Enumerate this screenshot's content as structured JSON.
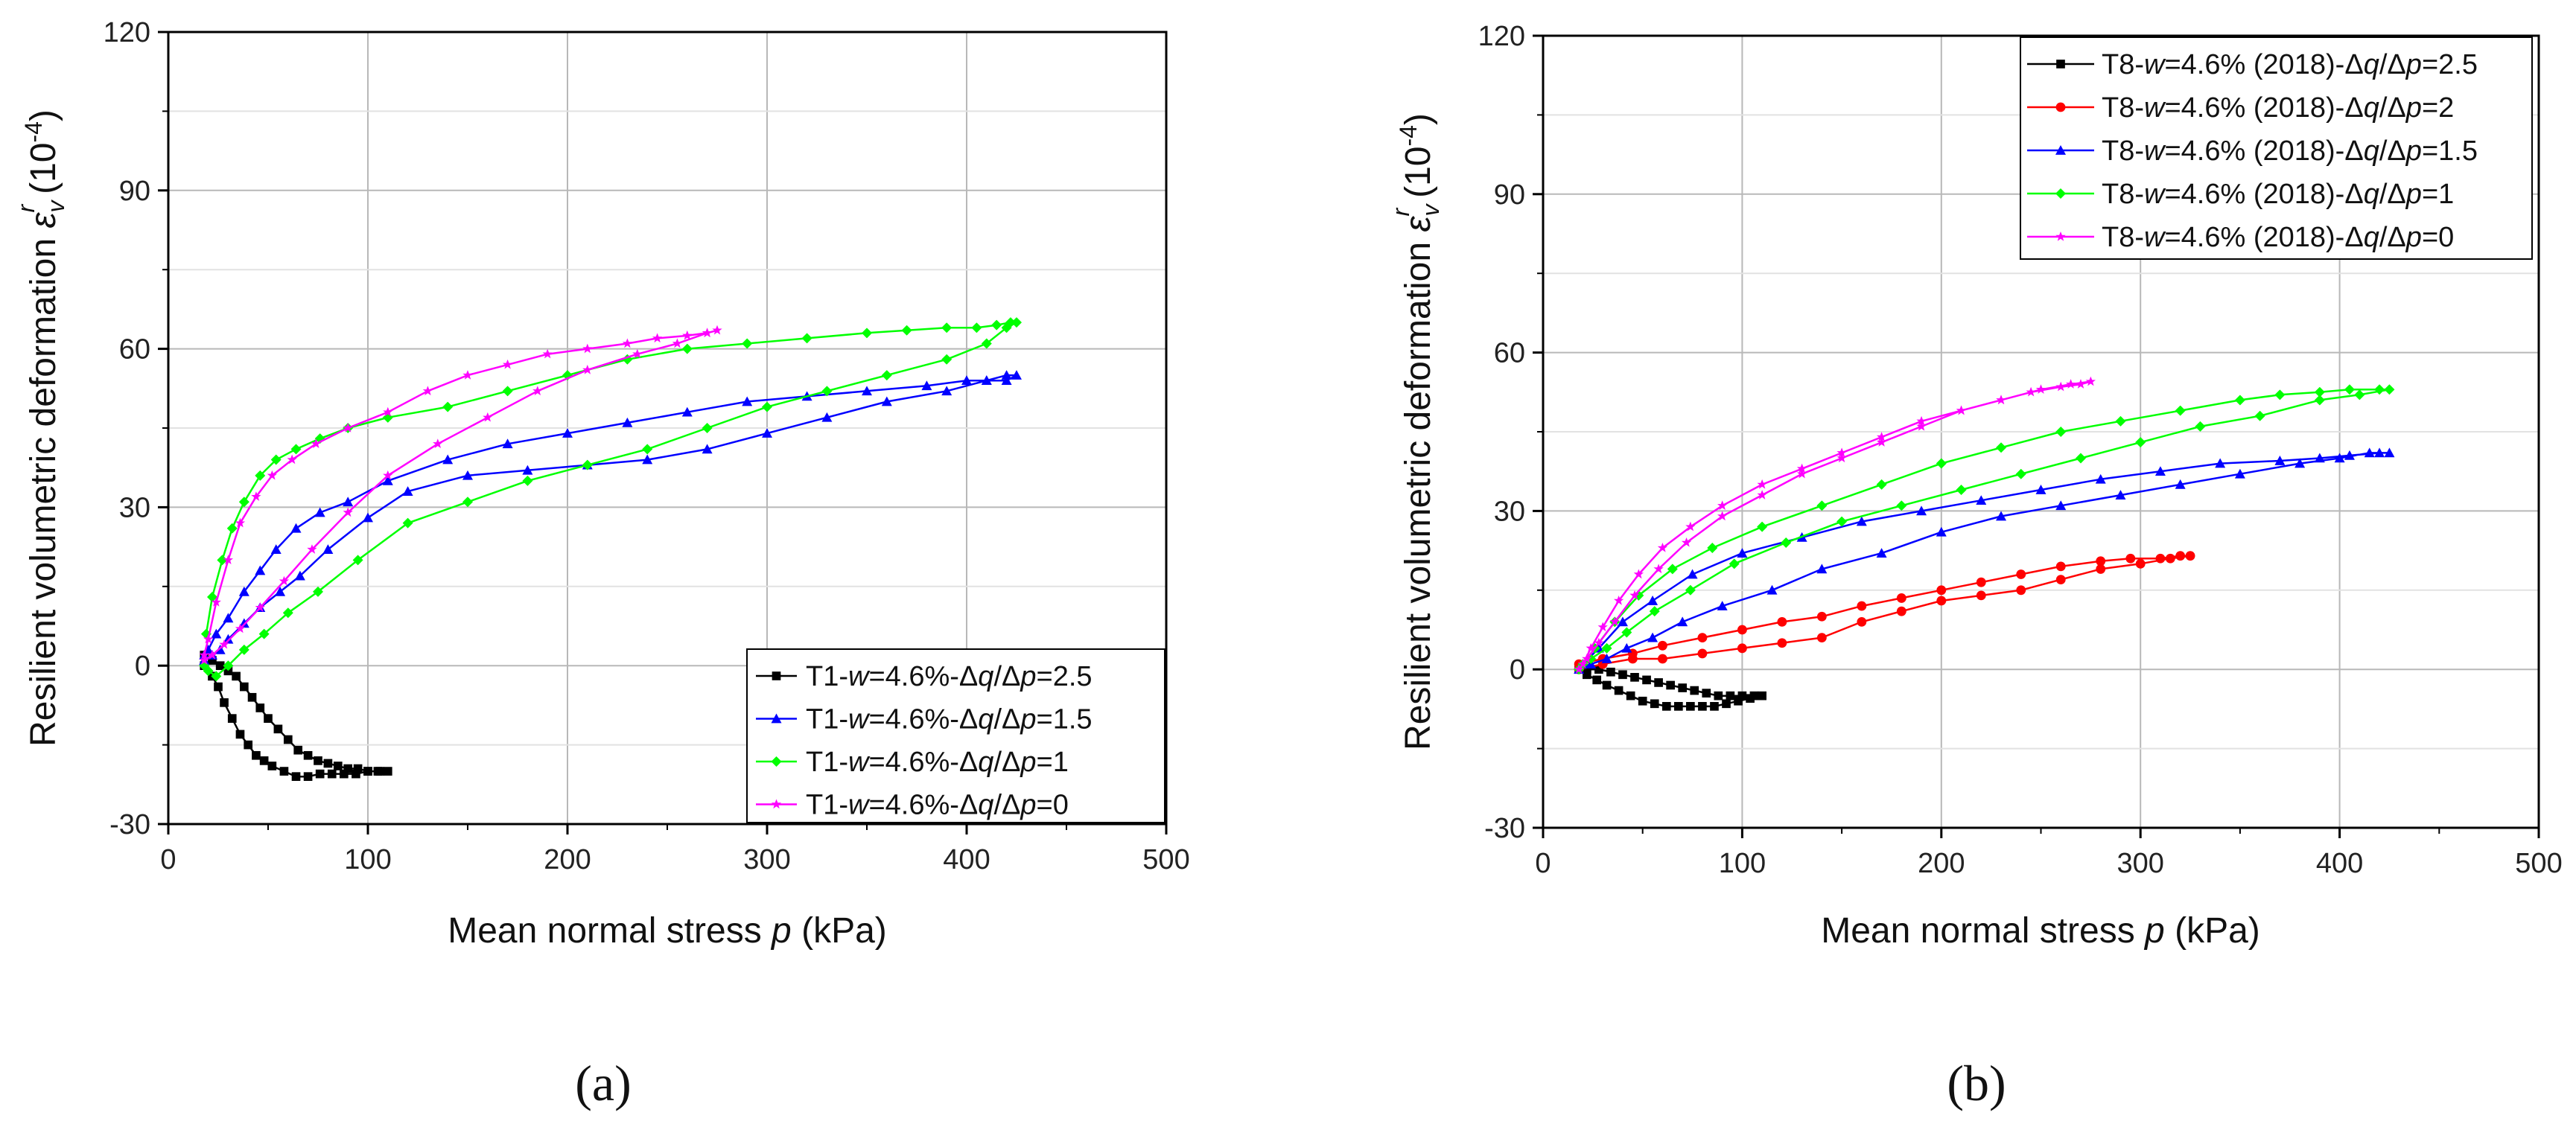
{
  "colors": {
    "black": "#000000",
    "red": "#ff0000",
    "blue": "#0000ff",
    "green": "#00ff00",
    "magenta": "#ff00ff"
  },
  "chart_data": [
    {
      "type": "line",
      "panel_label": "(a)",
      "xlabel": {
        "pre": "Mean normal stress ",
        "var": "p",
        "post": " (kPa)"
      },
      "ylabel": {
        "pre": "Resilient volumetric deformation ",
        "sym": "ε",
        "sub": "v",
        "sup": "r",
        "unit": "(10",
        "exp": "-4",
        "close": ")"
      },
      "xlim": [
        0,
        500
      ],
      "ylim": [
        -30,
        120
      ],
      "xticks": [
        "0",
        "100",
        "200",
        "300",
        "400",
        "500"
      ],
      "yticks": [
        "-30",
        "0",
        "30",
        "60",
        "90",
        "120"
      ],
      "grid": true,
      "legend_position": "bottom-right",
      "series": [
        {
          "name": "T1-w=4.6%-Δq/Δp=2.5",
          "legend": {
            "pre": "T1-",
            "w": "w",
            "mid": "=4.6%-Δ",
            "q": "q",
            "slash": "/Δ",
            "p": "p",
            "val": "=2.5"
          },
          "color": "black",
          "marker": "square",
          "x": [
            18,
            22,
            25,
            28,
            32,
            36,
            40,
            44,
            48,
            52,
            58,
            64,
            70,
            76,
            82,
            88,
            94,
            100,
            106,
            110,
            105,
            100,
            95,
            90,
            85,
            80,
            75,
            70,
            65,
            60,
            55,
            50,
            46,
            42,
            38,
            34,
            30,
            26,
            22,
            18
          ],
          "y": [
            0,
            -2,
            -4,
            -7,
            -10,
            -13,
            -15,
            -17,
            -18,
            -19,
            -20,
            -21,
            -21,
            -20.5,
            -20.5,
            -20.5,
            -20.5,
            -20,
            -20,
            -20,
            -20,
            -20,
            -19.5,
            -19.5,
            -19,
            -18.5,
            -18,
            -17,
            -16,
            -14,
            -12,
            -10,
            -8,
            -6,
            -4,
            -2,
            -1,
            0,
            1,
            2
          ]
        },
        {
          "name": "T1-w=4.6%-Δq/Δp=1.5",
          "legend": {
            "pre": "T1-",
            "w": "w",
            "mid": "=4.6%-Δ",
            "q": "q",
            "slash": "/Δ",
            "p": "p",
            "val": "=1.5"
          },
          "color": "blue",
          "marker": "triangle",
          "x": [
            18,
            22,
            26,
            30,
            38,
            46,
            56,
            66,
            80,
            100,
            120,
            150,
            180,
            210,
            240,
            270,
            300,
            330,
            360,
            390,
            410,
            420,
            425,
            420,
            410,
            400,
            380,
            350,
            320,
            290,
            260,
            230,
            200,
            170,
            140,
            110,
            90,
            76,
            64,
            54,
            46,
            38,
            30,
            24,
            20,
            18
          ],
          "y": [
            1,
            2,
            3,
            5,
            8,
            11,
            14,
            17,
            22,
            28,
            33,
            36,
            37,
            38,
            39,
            41,
            44,
            47,
            50,
            52,
            54,
            55,
            55,
            54,
            54,
            54,
            53,
            52,
            51,
            50,
            48,
            46,
            44,
            42,
            39,
            35,
            31,
            29,
            26,
            22,
            18,
            14,
            9,
            6,
            3,
            2
          ]
        },
        {
          "name": "T1-w=4.6%-Δq/Δp=1",
          "legend": {
            "pre": "T1-",
            "w": "w",
            "mid": "=4.6%-Δ",
            "q": "q",
            "slash": "/Δ",
            "p": "p",
            "val": "=1"
          },
          "color": "green",
          "marker": "diamond",
          "x": [
            18,
            20,
            24,
            30,
            38,
            48,
            60,
            75,
            95,
            120,
            150,
            180,
            210,
            240,
            270,
            300,
            330,
            360,
            390,
            410,
            420,
            425,
            422,
            415,
            405,
            390,
            370,
            350,
            320,
            290,
            260,
            230,
            200,
            170,
            140,
            110,
            90,
            76,
            64,
            54,
            46,
            38,
            32,
            27,
            22,
            19
          ],
          "y": [
            0,
            -1,
            -2,
            0,
            3,
            6,
            10,
            14,
            20,
            27,
            31,
            35,
            38,
            41,
            45,
            49,
            52,
            55,
            58,
            61,
            64,
            65,
            65,
            64.5,
            64,
            64,
            63.5,
            63,
            62,
            61,
            60,
            58,
            55,
            52,
            49,
            47,
            45,
            43,
            41,
            39,
            36,
            31,
            26,
            20,
            13,
            6
          ]
        },
        {
          "name": "T1-w=4.6%-Δq/Δp=0",
          "legend": {
            "pre": "T1-",
            "w": "w",
            "mid": "=4.6%-Δ",
            "q": "q",
            "slash": "/Δ",
            "p": "p",
            "val": "=0"
          },
          "color": "magenta",
          "marker": "star",
          "x": [
            18,
            22,
            28,
            36,
            46,
            58,
            72,
            90,
            110,
            135,
            160,
            185,
            210,
            235,
            255,
            270,
            275,
            270,
            260,
            245,
            230,
            210,
            190,
            170,
            150,
            130,
            110,
            90,
            74,
            62,
            52,
            44,
            36,
            30,
            24,
            20,
            18
          ],
          "y": [
            1,
            2,
            4,
            7,
            11,
            16,
            22,
            29,
            36,
            42,
            47,
            52,
            56,
            59,
            61,
            63,
            63.5,
            63,
            62.5,
            62,
            61,
            60,
            59,
            57,
            55,
            52,
            48,
            45,
            42,
            39,
            36,
            32,
            27,
            20,
            12,
            5,
            2
          ]
        }
      ]
    },
    {
      "type": "line",
      "panel_label": "(b)",
      "xlabel": {
        "pre": "Mean normal stress ",
        "var": "p",
        "post": " (kPa)"
      },
      "ylabel": {
        "pre": "Resilient volumetric deformation ",
        "sym": "ε",
        "sub": "v",
        "sup": "r",
        "unit": "(10",
        "exp": "-4",
        "close": ")"
      },
      "xlim": [
        0,
        500
      ],
      "ylim": [
        -30,
        120
      ],
      "xticks": [
        "0",
        "100",
        "200",
        "300",
        "400",
        "500"
      ],
      "yticks": [
        "-30",
        "0",
        "30",
        "60",
        "90",
        "120"
      ],
      "grid": true,
      "legend_position": "top-right",
      "series": [
        {
          "name": "T8-w=4.6% (2018)-Δq/Δp=2.5",
          "legend": {
            "pre": "T8-",
            "w": "w",
            "mid": "=4.6% (2018)-Δ",
            "q": "q",
            "slash": "/Δ",
            "p": "p",
            "val": "=2.5"
          },
          "color": "black",
          "marker": "square",
          "x": [
            18,
            22,
            27,
            32,
            38,
            44,
            50,
            56,
            62,
            68,
            74,
            80,
            86,
            92,
            98,
            104,
            110,
            106,
            100,
            94,
            88,
            82,
            76,
            70,
            64,
            58,
            52,
            46,
            40,
            34,
            28,
            22,
            18
          ],
          "y": [
            0,
            -1,
            -2,
            -3,
            -4,
            -5,
            -6,
            -6.5,
            -7,
            -7,
            -7,
            -7,
            -7,
            -6.5,
            -6,
            -5.5,
            -5,
            -5,
            -5,
            -5,
            -5,
            -4.5,
            -4,
            -3.5,
            -3,
            -2.5,
            -2,
            -1.5,
            -1,
            -0.5,
            0,
            0,
            0
          ]
        },
        {
          "name": "T8-w=4.6% (2018)-Δq/Δp=2",
          "legend": {
            "pre": "T8-",
            "w": "w",
            "mid": "=4.6% (2018)-Δ",
            "q": "q",
            "slash": "/Δ",
            "p": "p",
            "val": "=2"
          },
          "color": "red",
          "marker": "circle",
          "x": [
            18,
            30,
            45,
            60,
            80,
            100,
            120,
            140,
            160,
            180,
            200,
            220,
            240,
            260,
            280,
            300,
            315,
            325,
            320,
            310,
            295,
            280,
            260,
            240,
            220,
            200,
            180,
            160,
            140,
            120,
            100,
            80,
            60,
            45,
            30,
            18
          ],
          "y": [
            0,
            1,
            2,
            2,
            3,
            4,
            5,
            6,
            9,
            11,
            13,
            14,
            15,
            17,
            19,
            20,
            21,
            21.5,
            21.5,
            21,
            21,
            20.5,
            19.5,
            18,
            16.5,
            15,
            13.5,
            12,
            10,
            9,
            7.5,
            6,
            4.5,
            3,
            2,
            1
          ]
        },
        {
          "name": "T8-w=4.6% (2018)-Δq/Δp=1.5",
          "legend": {
            "pre": "T8-",
            "w": "w",
            "mid": "=4.6% (2018)-Δ",
            "q": "q",
            "slash": "/Δ",
            "p": "p",
            "val": "=1.5"
          },
          "color": "blue",
          "marker": "triangle",
          "x": [
            18,
            24,
            32,
            42,
            55,
            70,
            90,
            115,
            140,
            170,
            200,
            230,
            260,
            290,
            320,
            350,
            380,
            400,
            415,
            425,
            420,
            405,
            390,
            370,
            340,
            310,
            280,
            250,
            220,
            190,
            160,
            130,
            100,
            75,
            55,
            40,
            28,
            20
          ],
          "y": [
            0,
            1,
            2,
            4,
            6,
            9,
            12,
            15,
            19,
            22,
            26,
            29,
            31,
            33,
            35,
            37,
            39,
            40,
            41,
            41,
            41,
            40.5,
            40,
            39.5,
            39,
            37.5,
            36,
            34,
            32,
            30,
            28,
            25,
            22,
            18,
            13,
            9,
            4,
            1
          ]
        },
        {
          "name": "T8-w=4.6% (2018)-Δq/Δp=1",
          "legend": {
            "pre": "T8-",
            "w": "w",
            "mid": "=4.6% (2018)-Δ",
            "q": "q",
            "slash": "/Δ",
            "p": "p",
            "val": "=1"
          },
          "color": "green",
          "marker": "diamond",
          "x": [
            18,
            24,
            32,
            42,
            56,
            74,
            96,
            122,
            150,
            180,
            210,
            240,
            270,
            300,
            330,
            360,
            390,
            410,
            425,
            420,
            405,
            390,
            370,
            350,
            320,
            290,
            260,
            230,
            200,
            170,
            140,
            110,
            85,
            65,
            48,
            36,
            26,
            20
          ],
          "y": [
            0,
            2,
            4,
            7,
            11,
            15,
            20,
            24,
            28,
            31,
            34,
            37,
            40,
            43,
            46,
            48,
            51,
            52,
            53,
            53,
            53,
            52.5,
            52,
            51,
            49,
            47,
            45,
            42,
            39,
            35,
            31,
            27,
            23,
            19,
            14,
            9,
            4,
            1
          ]
        },
        {
          "name": "T8-w=4.6% (2018)-Δq/Δp=0",
          "legend": {
            "pre": "T8-",
            "w": "w",
            "mid": "=4.6% (2018)-Δ",
            "q": "q",
            "slash": "/Δ",
            "p": "p",
            "val": "=0"
          },
          "color": "magenta",
          "marker": "star",
          "x": [
            18,
            22,
            28,
            36,
            46,
            58,
            72,
            90,
            110,
            130,
            150,
            170,
            190,
            210,
            230,
            250,
            265,
            275,
            270,
            260,
            245,
            230,
            210,
            190,
            170,
            150,
            130,
            110,
            90,
            74,
            60,
            48,
            38,
            30,
            24,
            20,
            18
          ],
          "y": [
            0,
            2,
            5,
            9,
            14,
            19,
            24,
            29,
            33,
            37,
            40,
            43,
            46,
            49,
            51,
            53,
            54,
            54.5,
            54,
            53.5,
            52.5,
            51,
            49,
            47,
            44,
            41,
            38,
            35,
            31,
            27,
            23,
            18,
            13,
            8,
            4,
            1,
            0
          ]
        }
      ]
    }
  ]
}
